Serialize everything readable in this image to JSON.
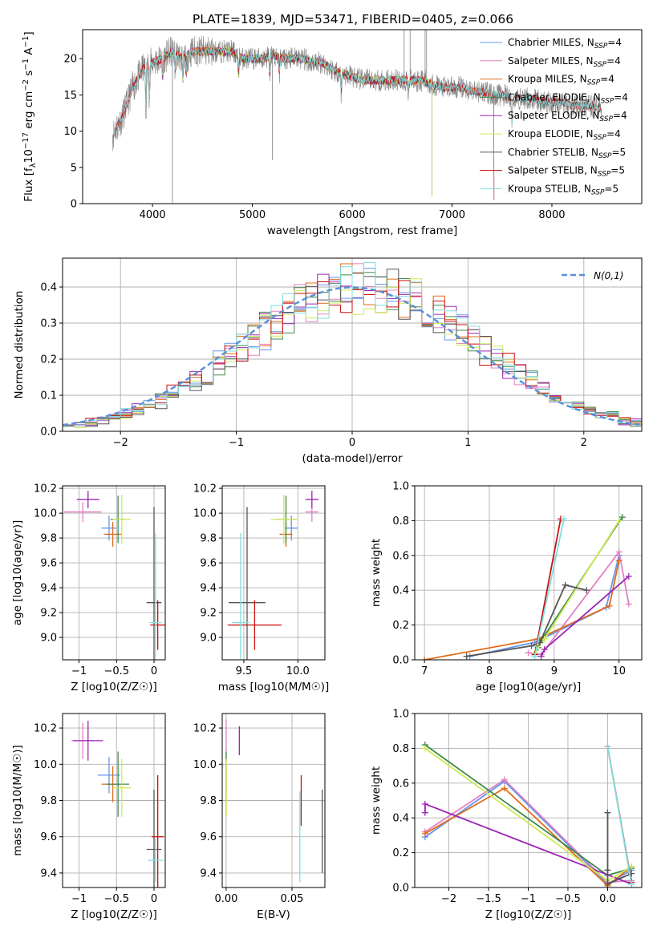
{
  "figure_title": "PLATE=1839, MJD=53471, FIBERID=0405, z=0.066",
  "colors": {
    "chabrier_miles": "#6495ed",
    "salpeter_miles": "#e37fc2",
    "kroupa_miles": "#e06c1a",
    "chabrier_elodie": "#3e8a4a",
    "salpeter_elodie": "#9b25b4",
    "kroupa_elodie": "#cdea55",
    "chabrier_stelib": "#555555",
    "salpeter_stelib": "#cc1111",
    "kroupa_stelib": "#7fdede",
    "data": "#808080",
    "normal": "#5b8fd8"
  },
  "legend": [
    {
      "key": "chabrier_miles",
      "label": "Chabrier MILES, N_SSP=4"
    },
    {
      "key": "salpeter_miles",
      "label": "Salpeter MILES, N_SSP=4"
    },
    {
      "key": "kroupa_miles",
      "label": "Kroupa MILES, N_SSP=4"
    },
    {
      "key": "chabrier_elodie",
      "label": "Chabrier ELODIE, N_SSP=4"
    },
    {
      "key": "salpeter_elodie",
      "label": "Salpeter ELODIE, N_SSP=4"
    },
    {
      "key": "kroupa_elodie",
      "label": "Kroupa ELODIE, N_SSP=4"
    },
    {
      "key": "chabrier_stelib",
      "label": "Chabrier STELIB, N_SSP=5"
    },
    {
      "key": "salpeter_stelib",
      "label": "Salpeter STELIB, N_SSP=5"
    },
    {
      "key": "kroupa_stelib",
      "label": "Kroupa STELIB, N_SSP=5"
    }
  ],
  "chart_data": [
    {
      "id": "spectrum",
      "type": "line",
      "xlabel": "wavelength [Angstrom, rest frame]",
      "ylabel": "Flux [f_λ 10^-17 erg cm^-2 s^-1 A^-1]",
      "xlim": [
        3300,
        8900
      ],
      "ylim": [
        0,
        24
      ],
      "xticks": [
        4000,
        5000,
        6000,
        7000,
        8000
      ],
      "yticks": [
        0,
        5,
        10,
        15,
        20
      ],
      "continuum": [
        [
          3600,
          9.5
        ],
        [
          3700,
          12
        ],
        [
          3800,
          16
        ],
        [
          3900,
          18.5
        ],
        [
          4000,
          19.5
        ],
        [
          4100,
          20
        ],
        [
          4200,
          21
        ],
        [
          4300,
          20
        ],
        [
          4400,
          21
        ],
        [
          4500,
          21
        ],
        [
          4600,
          21
        ],
        [
          4700,
          21
        ],
        [
          4800,
          21
        ],
        [
          4900,
          20
        ],
        [
          5000,
          20
        ],
        [
          5100,
          20
        ],
        [
          5200,
          20.5
        ],
        [
          5300,
          20
        ],
        [
          5400,
          20
        ],
        [
          5500,
          20
        ],
        [
          5600,
          19.5
        ],
        [
          5700,
          19.5
        ],
        [
          5800,
          18.5
        ],
        [
          5900,
          18
        ],
        [
          6000,
          17.5
        ],
        [
          6100,
          17
        ],
        [
          6200,
          17
        ],
        [
          6300,
          17
        ],
        [
          6400,
          17
        ],
        [
          6500,
          17
        ],
        [
          6600,
          17
        ],
        [
          6700,
          17
        ],
        [
          6800,
          16.5
        ],
        [
          6900,
          16
        ],
        [
          7000,
          16
        ],
        [
          7100,
          16
        ],
        [
          7200,
          15.5
        ],
        [
          7300,
          15.5
        ],
        [
          7400,
          15
        ],
        [
          7500,
          15
        ],
        [
          7600,
          14.5
        ],
        [
          7700,
          14.5
        ],
        [
          7800,
          14.5
        ],
        [
          7900,
          14
        ],
        [
          8000,
          14
        ],
        [
          8100,
          14
        ],
        [
          8200,
          13.5
        ],
        [
          8300,
          13.5
        ],
        [
          8400,
          13.5
        ],
        [
          8500,
          13
        ]
      ],
      "model_end": {
        "elodie": [
          6800,
          1
        ],
        "miles": [
          7420,
          0.5
        ]
      }
    },
    {
      "id": "residuals",
      "type": "step",
      "xlabel": "(data-model)/error",
      "ylabel": "Normed distribution",
      "xlim": [
        -2.5,
        2.5
      ],
      "ylim": [
        0,
        0.48
      ],
      "xticks": [
        -2,
        -1,
        0,
        1,
        2
      ],
      "yticks": [
        0,
        0.1,
        0.2,
        0.3,
        0.4
      ],
      "legend_label": "N(0,1)",
      "legend_position": "upper right"
    },
    {
      "id": "age_vs_Z",
      "type": "errorbar",
      "xlabel": "Z [log10(Z/Z☉)]",
      "ylabel": "age [log10(age/yr)]",
      "xlim": [
        -1.22,
        0.15
      ],
      "ylim": [
        8.82,
        10.22
      ],
      "xticks": [
        -1,
        -0.5,
        0
      ],
      "yticks": [
        9.0,
        9.2,
        9.4,
        9.6,
        9.8,
        10.0,
        10.2
      ],
      "points": [
        {
          "key": "chabrier_miles",
          "x": -0.6,
          "xerr": 0.1,
          "y": 9.88,
          "yerr": 0.1
        },
        {
          "key": "salpeter_miles",
          "x": -0.95,
          "xerr": 0.25,
          "y": 10.01,
          "yerr": 0.08
        },
        {
          "key": "kroupa_miles",
          "x": -0.55,
          "xerr": 0.12,
          "y": 9.83,
          "yerr": 0.1
        },
        {
          "key": "chabrier_elodie",
          "x": -0.48,
          "xerr": 0.1,
          "y": 9.95,
          "yerr": 0.19
        },
        {
          "key": "salpeter_elodie",
          "x": -0.88,
          "xerr": 0.15,
          "y": 10.11,
          "yerr": 0.07
        },
        {
          "key": "kroupa_elodie",
          "x": -0.43,
          "xerr": 0.12,
          "y": 9.95,
          "yerr": 0.2
        },
        {
          "key": "chabrier_stelib",
          "x": 0.0,
          "xerr": 0.1,
          "y": 9.28,
          "yerr": 0.77
        },
        {
          "key": "salpeter_stelib",
          "x": 0.05,
          "xerr": 0.1,
          "y": 9.1,
          "yerr": 0.2
        },
        {
          "key": "kroupa_stelib",
          "x": 0.02,
          "xerr": 0.08,
          "y": 9.12,
          "yerr": 0.72
        }
      ]
    },
    {
      "id": "age_vs_mass",
      "type": "errorbar",
      "xlabel": "mass [log10(M/M☉)]",
      "ylabel": "",
      "xlim": [
        9.3,
        10.25
      ],
      "ylim": [
        8.82,
        10.22
      ],
      "xticks": [
        9.5,
        10.0
      ],
      "yticks": [
        9.0,
        9.2,
        9.4,
        9.6,
        9.8,
        10.0,
        10.2
      ],
      "points": [
        {
          "key": "chabrier_miles",
          "x": 9.94,
          "xerr": 0.06,
          "y": 9.88,
          "yerr": 0.1
        },
        {
          "key": "salpeter_miles",
          "x": 10.13,
          "xerr": 0.06,
          "y": 10.01,
          "yerr": 0.08
        },
        {
          "key": "kroupa_miles",
          "x": 9.89,
          "xerr": 0.06,
          "y": 9.83,
          "yerr": 0.1
        },
        {
          "key": "chabrier_elodie",
          "x": 9.89,
          "xerr": 0.1,
          "y": 9.95,
          "yerr": 0.19
        },
        {
          "key": "salpeter_elodie",
          "x": 10.13,
          "xerr": 0.06,
          "y": 10.11,
          "yerr": 0.07
        },
        {
          "key": "kroupa_elodie",
          "x": 9.87,
          "xerr": 0.12,
          "y": 9.95,
          "yerr": 0.2
        },
        {
          "key": "chabrier_stelib",
          "x": 9.53,
          "xerr": 0.17,
          "y": 9.28,
          "yerr": 0.77
        },
        {
          "key": "salpeter_stelib",
          "x": 9.6,
          "xerr": 0.25,
          "y": 9.1,
          "yerr": 0.2
        },
        {
          "key": "kroupa_stelib",
          "x": 9.47,
          "xerr": 0.08,
          "y": 9.12,
          "yerr": 0.72
        }
      ]
    },
    {
      "id": "massweight_vs_age",
      "type": "line",
      "xlabel": "age [log10(age/yr)]",
      "ylabel": "mass weight",
      "xlim": [
        6.85,
        10.35
      ],
      "ylim": [
        0,
        1
      ],
      "xticks": [
        7,
        8,
        9,
        10
      ],
      "yticks": [
        0,
        0.2,
        0.4,
        0.6,
        0.8,
        1.0
      ],
      "series": [
        {
          "key": "chabrier_miles",
          "x": [
            7.7,
            8.7,
            9.8,
            10.0
          ],
          "y": [
            0.02,
            0.1,
            0.3,
            0.6
          ]
        },
        {
          "key": "salpeter_miles",
          "x": [
            8.6,
            8.8,
            10.0,
            10.15
          ],
          "y": [
            0.04,
            0.03,
            0.62,
            0.32
          ]
        },
        {
          "key": "kroupa_miles",
          "x": [
            7.0,
            8.75,
            9.85,
            10.0
          ],
          "y": [
            0.0,
            0.12,
            0.31,
            0.57
          ]
        },
        {
          "key": "chabrier_elodie",
          "x": [
            8.75,
            8.8,
            10.05
          ],
          "y": [
            0.07,
            0.11,
            0.82
          ]
        },
        {
          "key": "salpeter_elodie",
          "x": [
            8.8,
            8.85,
            10.15
          ],
          "y": [
            0.02,
            0.06,
            0.48
          ]
        },
        {
          "key": "kroupa_elodie",
          "x": [
            8.7,
            8.85,
            10.0
          ],
          "y": [
            0.04,
            0.12,
            0.8
          ]
        },
        {
          "key": "chabrier_stelib",
          "x": [
            7.65,
            8.65,
            8.78,
            9.17,
            9.5
          ],
          "y": [
            0.02,
            0.08,
            0.1,
            0.43,
            0.4
          ]
        },
        {
          "key": "salpeter_stelib",
          "x": [
            8.7,
            9.1
          ],
          "y": [
            0.03,
            0.81
          ]
        },
        {
          "key": "kroupa_stelib",
          "x": [
            8.7,
            9.15
          ],
          "y": [
            0.02,
            0.81
          ]
        }
      ]
    },
    {
      "id": "mass_vs_Z",
      "type": "errorbar",
      "xlabel": "Z [log10(Z/Z☉)]",
      "ylabel": "mass [log10(M/M☉)]",
      "xlim": [
        -1.22,
        0.15
      ],
      "ylim": [
        9.32,
        10.28
      ],
      "xticks": [
        -1,
        -0.5,
        0
      ],
      "yticks": [
        9.4,
        9.6,
        9.8,
        10.0,
        10.2
      ],
      "points": [
        {
          "key": "chabrier_miles",
          "x": -0.6,
          "xerr": 0.15,
          "y": 9.94,
          "yerr": 0.1
        },
        {
          "key": "salpeter_miles",
          "x": -0.95,
          "xerr": 0.15,
          "y": 10.13,
          "yerr": 0.1
        },
        {
          "key": "kroupa_miles",
          "x": -0.55,
          "xerr": 0.15,
          "y": 9.89,
          "yerr": 0.1
        },
        {
          "key": "chabrier_elodie",
          "x": -0.48,
          "xerr": 0.15,
          "y": 9.89,
          "yerr": 0.18
        },
        {
          "key": "salpeter_elodie",
          "x": -0.88,
          "xerr": 0.2,
          "y": 10.13,
          "yerr": 0.11
        },
        {
          "key": "kroupa_elodie",
          "x": -0.43,
          "xerr": 0.12,
          "y": 9.87,
          "yerr": 0.16
        },
        {
          "key": "chabrier_stelib",
          "x": 0.0,
          "xerr": 0.1,
          "y": 9.53,
          "yerr": 0.33
        },
        {
          "key": "salpeter_stelib",
          "x": 0.05,
          "xerr": 0.08,
          "y": 9.6,
          "yerr": 0.34
        },
        {
          "key": "kroupa_stelib",
          "x": 0.02,
          "xerr": 0.1,
          "y": 9.47,
          "yerr": 0.12
        }
      ]
    },
    {
      "id": "mass_vs_ebv",
      "type": "errorbar",
      "xlabel": "E(B-V)",
      "ylabel": "",
      "xlim": [
        -0.003,
        0.075
      ],
      "ylim": [
        9.32,
        10.28
      ],
      "xticks": [
        0.0,
        0.05
      ],
      "yticks": [
        9.4,
        9.6,
        9.8,
        10.0,
        10.2
      ],
      "points": [
        {
          "key": "chabrier_miles",
          "x": 0.0,
          "xerr": 0,
          "y": 9.94,
          "yerr": 0.1
        },
        {
          "key": "salpeter_miles",
          "x": 0.0,
          "xerr": 0,
          "y": 10.13,
          "yerr": 0.12
        },
        {
          "key": "kroupa_miles",
          "x": 0.0,
          "xerr": 0,
          "y": 9.89,
          "yerr": 0.1
        },
        {
          "key": "chabrier_elodie",
          "x": 0.0,
          "xerr": 0,
          "y": 9.89,
          "yerr": 0.18
        },
        {
          "key": "salpeter_elodie",
          "x": 0.01,
          "xerr": 0,
          "y": 10.13,
          "yerr": 0.08
        },
        {
          "key": "kroupa_elodie",
          "x": 0.0,
          "xerr": 0,
          "y": 9.87,
          "yerr": 0.16
        },
        {
          "key": "chabrier_stelib",
          "x": 0.073,
          "xerr": 0,
          "y": 9.63,
          "yerr": 0.23
        },
        {
          "key": "salpeter_stelib",
          "x": 0.057,
          "xerr": 0,
          "y": 9.8,
          "yerr": 0.14
        },
        {
          "key": "kroupa_stelib",
          "x": 0.056,
          "xerr": 0,
          "y": 9.6,
          "yerr": 0.25
        }
      ]
    },
    {
      "id": "massweight_vs_Z",
      "type": "line",
      "xlabel": "Z [log10(Z/Z☉)]",
      "ylabel": "mass weight",
      "xlim": [
        -2.43,
        0.43
      ],
      "ylim": [
        0,
        1
      ],
      "xticks": [
        -2.0,
        -1.5,
        -1.0,
        -0.5,
        0.0
      ],
      "yticks": [
        0,
        0.2,
        0.4,
        0.6,
        0.8,
        1.0
      ],
      "series": [
        {
          "key": "chabrier_miles",
          "x": [
            -2.3,
            -1.3,
            0.0,
            0.3
          ],
          "y": [
            0.29,
            0.61,
            0.02,
            0.1
          ]
        },
        {
          "key": "salpeter_miles",
          "x": [
            -2.3,
            -1.3,
            0.0,
            0.3
          ],
          "y": [
            0.32,
            0.62,
            0.03,
            0.04
          ]
        },
        {
          "key": "kroupa_miles",
          "x": [
            -2.3,
            -1.3,
            0.0,
            0.3
          ],
          "y": [
            0.31,
            0.57,
            0.01,
            0.12
          ]
        },
        {
          "key": "chabrier_elodie",
          "x": [
            -2.3,
            0.0,
            0.3
          ],
          "y": [
            0.82,
            0.07,
            0.11
          ]
        },
        {
          "key": "salpeter_elodie",
          "x": [
            -2.3,
            -2.3,
            0.3
          ],
          "y": [
            0.43,
            0.48,
            0.02
          ]
        },
        {
          "key": "kroupa_elodie",
          "x": [
            -2.3,
            0.0,
            0.3
          ],
          "y": [
            0.8,
            0.04,
            0.12
          ]
        },
        {
          "key": "chabrier_stelib",
          "x": [
            0.0,
            0.0,
            0.0,
            0.3
          ],
          "y": [
            0.43,
            0.1,
            0.02,
            0.08
          ]
        },
        {
          "key": "salpeter_stelib",
          "x": [
            0.0,
            0.3
          ],
          "y": [
            0.81,
            0.03
          ]
        },
        {
          "key": "kroupa_stelib",
          "x": [
            0.0,
            0.3
          ],
          "y": [
            0.81,
            0.02
          ]
        }
      ]
    }
  ]
}
